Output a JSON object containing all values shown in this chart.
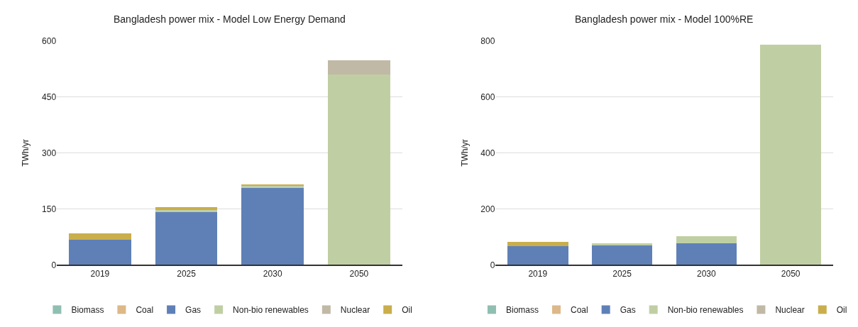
{
  "chart_data": [
    {
      "type": "bar",
      "title": "Bangladesh power mix - Model Low Energy Demand",
      "ylabel": "TWh/yr",
      "categories": [
        "2019",
        "2025",
        "2030",
        "2050"
      ],
      "stacked": true,
      "ylim": [
        0,
        600
      ],
      "yticks": [
        0,
        150,
        300,
        450,
        600
      ],
      "grid": "y",
      "legend": "bottom",
      "series": [
        {
          "name": "Biomass",
          "color": "#8fbfb0",
          "values": [
            0,
            0,
            0,
            0
          ]
        },
        {
          "name": "Coal",
          "color": "#ddb888",
          "values": [
            0,
            0,
            0,
            0
          ]
        },
        {
          "name": "Gas",
          "color": "#5f80b7",
          "values": [
            68,
            144,
            206,
            0
          ]
        },
        {
          "name": "Non-bio renewables",
          "color": "#c0cfa3",
          "values": [
            0,
            3,
            6,
            509
          ]
        },
        {
          "name": "Nuclear",
          "color": "#c0b9a6",
          "values": [
            0,
            0,
            0,
            38
          ]
        },
        {
          "name": "Oil",
          "color": "#c9ae4b",
          "values": [
            16,
            8,
            4,
            0
          ]
        }
      ]
    },
    {
      "type": "bar",
      "title": "Bangladesh power mix - Model 100%RE",
      "ylabel": "TWh/yr",
      "categories": [
        "2019",
        "2025",
        "2030",
        "2050"
      ],
      "stacked": true,
      "ylim": [
        0,
        800
      ],
      "yticks": [
        0,
        200,
        400,
        600,
        800
      ],
      "grid": "y",
      "legend": "bottom",
      "series": [
        {
          "name": "Biomass",
          "color": "#8fbfb0",
          "values": [
            0,
            0,
            0,
            0
          ]
        },
        {
          "name": "Coal",
          "color": "#ddb888",
          "values": [
            0,
            null,
            0,
            0
          ]
        },
        {
          "name": "Gas",
          "color": "#5f80b7",
          "values": [
            68,
            70,
            77,
            0
          ]
        },
        {
          "name": "Non-bio renewables",
          "color": "#c0cfa3",
          "values": [
            0,
            6,
            26,
            785
          ]
        },
        {
          "name": "Nuclear",
          "color": "#c0b9a6",
          "values": [
            0,
            0,
            0,
            0
          ]
        },
        {
          "name": "Oil",
          "color": "#c9ae4b",
          "values": [
            14,
            0,
            0,
            0
          ]
        }
      ]
    }
  ]
}
